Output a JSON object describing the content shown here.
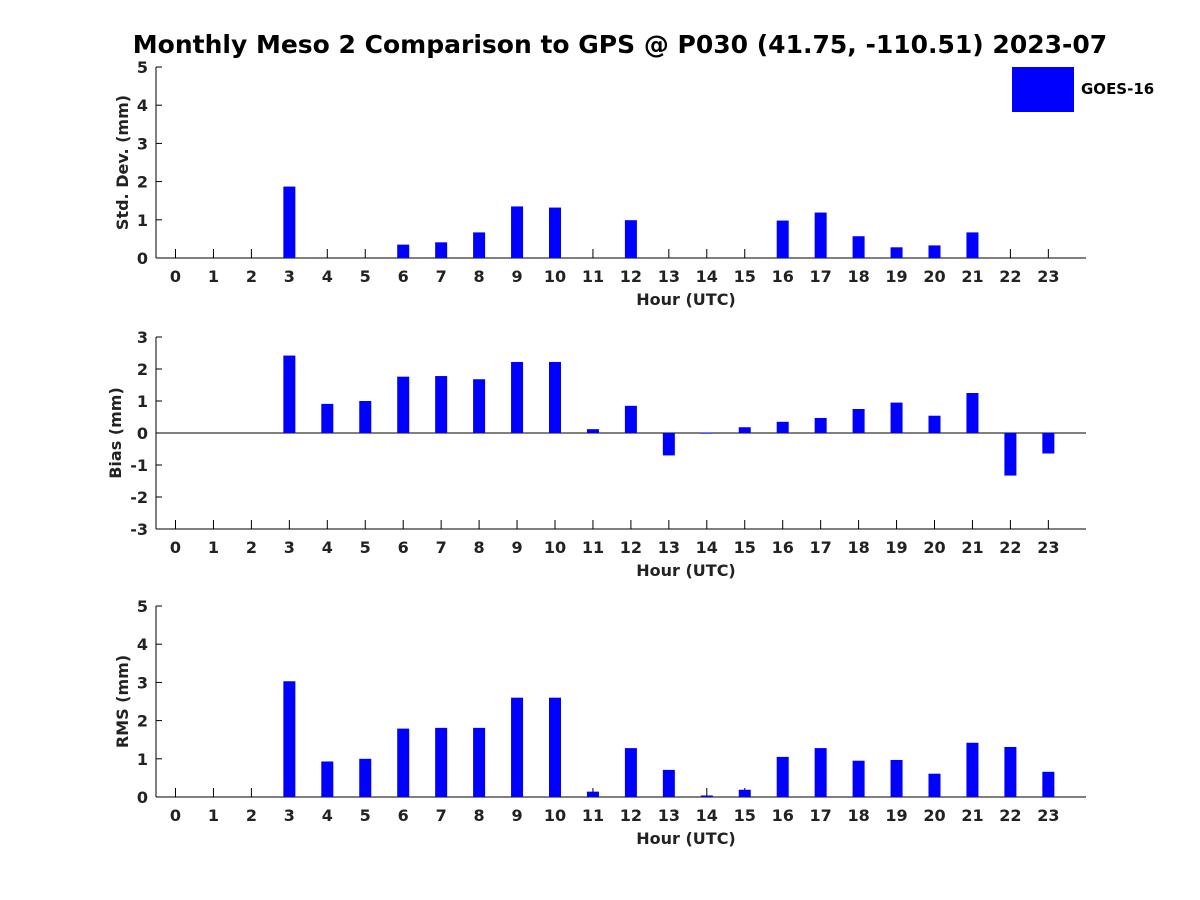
{
  "title": "Monthly Meso 2 Comparison to GPS @ P030 (41.75, -110.51) 2023-07",
  "colors": {
    "bar": "#0000ff",
    "axis": "#000000",
    "text": "#222222"
  },
  "legend": {
    "label": "GOES-16",
    "placement": "top-right"
  },
  "chart_data": [
    {
      "type": "bar",
      "ylabel": "Std. Dev. (mm)",
      "xlabel": "Hour (UTC)",
      "ylim": [
        0,
        5
      ],
      "yticks": [
        0,
        1,
        2,
        3,
        4,
        5
      ],
      "categories": [
        "0",
        "1",
        "2",
        "3",
        "4",
        "5",
        "6",
        "7",
        "8",
        "9",
        "10",
        "11",
        "12",
        "13",
        "14",
        "15",
        "16",
        "17",
        "18",
        "19",
        "20",
        "21",
        "22",
        "23"
      ],
      "series": [
        {
          "name": "GOES-16",
          "values": [
            null,
            null,
            null,
            1.87,
            null,
            null,
            0.35,
            0.41,
            0.67,
            1.35,
            1.32,
            null,
            0.99,
            null,
            null,
            null,
            0.98,
            1.19,
            0.57,
            0.28,
            0.33,
            0.67,
            null,
            null
          ]
        }
      ]
    },
    {
      "type": "bar",
      "ylabel": "Bias (mm)",
      "xlabel": "Hour (UTC)",
      "ylim": [
        -3,
        3
      ],
      "yticks": [
        -3,
        -2,
        -1,
        0,
        1,
        2,
        3
      ],
      "categories": [
        "0",
        "1",
        "2",
        "3",
        "4",
        "5",
        "6",
        "7",
        "8",
        "9",
        "10",
        "11",
        "12",
        "13",
        "14",
        "15",
        "16",
        "17",
        "18",
        "19",
        "20",
        "21",
        "22",
        "23"
      ],
      "series": [
        {
          "name": "GOES-16",
          "values": [
            null,
            null,
            null,
            2.42,
            0.91,
            1.0,
            1.76,
            1.78,
            1.68,
            2.22,
            2.22,
            0.12,
            0.85,
            -0.7,
            0.01,
            0.18,
            0.35,
            0.47,
            0.75,
            0.95,
            0.54,
            1.25,
            -1.33,
            -0.64
          ]
        }
      ]
    },
    {
      "type": "bar",
      "ylabel": "RMS (mm)",
      "xlabel": "Hour (UTC)",
      "ylim": [
        0,
        5
      ],
      "yticks": [
        0,
        1,
        2,
        3,
        4,
        5
      ],
      "categories": [
        "0",
        "1",
        "2",
        "3",
        "4",
        "5",
        "6",
        "7",
        "8",
        "9",
        "10",
        "11",
        "12",
        "13",
        "14",
        "15",
        "16",
        "17",
        "18",
        "19",
        "20",
        "21",
        "22",
        "23"
      ],
      "series": [
        {
          "name": "GOES-16",
          "values": [
            null,
            null,
            null,
            3.03,
            0.93,
            1.0,
            1.79,
            1.81,
            1.81,
            2.6,
            2.6,
            0.14,
            1.28,
            0.71,
            0.04,
            0.19,
            1.05,
            1.28,
            0.95,
            0.97,
            0.61,
            1.42,
            1.31,
            0.66
          ]
        }
      ]
    }
  ]
}
